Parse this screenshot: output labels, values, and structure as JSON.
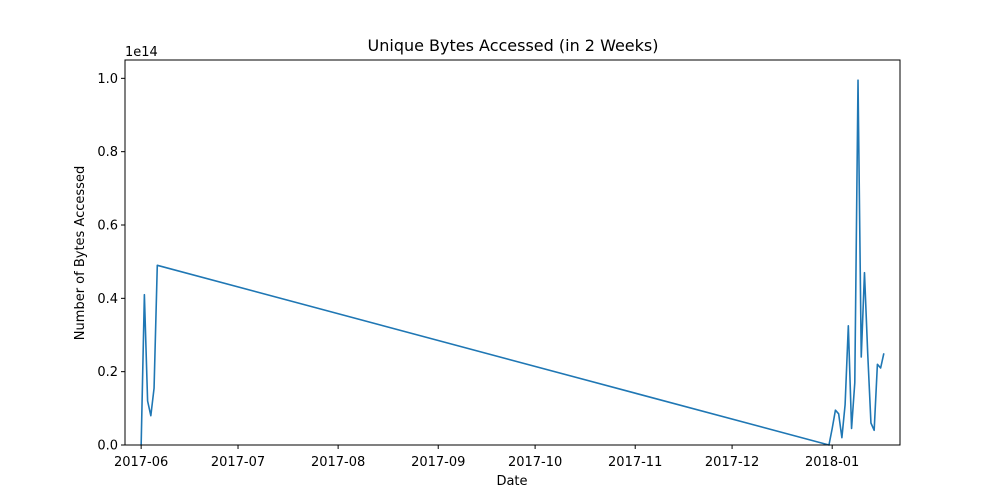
{
  "chart_data": {
    "type": "line",
    "title": "Unique Bytes Accessed (in 2 Weeks)",
    "xlabel": "Date",
    "ylabel": "Number of Bytes Accessed",
    "y_offset_label": "1e14",
    "y_multiplier": 100000000000000.0,
    "xlim": [
      "2017-05-27",
      "2018-01-22"
    ],
    "ylim": [
      0,
      1.05
    ],
    "x_ticks": [
      {
        "date": "2017-06-01",
        "label": "2017-06"
      },
      {
        "date": "2017-07-01",
        "label": "2017-07"
      },
      {
        "date": "2017-08-01",
        "label": "2017-08"
      },
      {
        "date": "2017-09-01",
        "label": "2017-09"
      },
      {
        "date": "2017-10-01",
        "label": "2017-10"
      },
      {
        "date": "2017-11-01",
        "label": "2017-11"
      },
      {
        "date": "2017-12-01",
        "label": "2017-12"
      },
      {
        "date": "2018-01-01",
        "label": "2018-01"
      }
    ],
    "y_ticks": [
      {
        "value": 0.0,
        "label": "0.0"
      },
      {
        "value": 0.2,
        "label": "0.2"
      },
      {
        "value": 0.4,
        "label": "0.4"
      },
      {
        "value": 0.6,
        "label": "0.6"
      },
      {
        "value": 0.8,
        "label": "0.8"
      },
      {
        "value": 1.0,
        "label": "1.0"
      }
    ],
    "grid": false,
    "legend": "none",
    "series": [
      {
        "color": "#1f77b4",
        "x": [
          "2017-06-01",
          "2017-06-02",
          "2017-06-03",
          "2017-06-04",
          "2017-06-05",
          "2017-06-06",
          "2017-12-31",
          "2018-01-01",
          "2018-01-02",
          "2018-01-03",
          "2018-01-04",
          "2018-01-05",
          "2018-01-06",
          "2018-01-07",
          "2018-01-08",
          "2018-01-09",
          "2018-01-10",
          "2018-01-11",
          "2018-01-12",
          "2018-01-13",
          "2018-01-14",
          "2018-01-15",
          "2018-01-16",
          "2018-01-17"
        ],
        "y": [
          0.0,
          0.41,
          0.12,
          0.08,
          0.155,
          0.49,
          0.0,
          0.045,
          0.095,
          0.085,
          0.02,
          0.11,
          0.325,
          0.045,
          0.17,
          0.995,
          0.24,
          0.47,
          0.25,
          0.06,
          0.04,
          0.22,
          0.21,
          0.25
        ]
      }
    ]
  }
}
